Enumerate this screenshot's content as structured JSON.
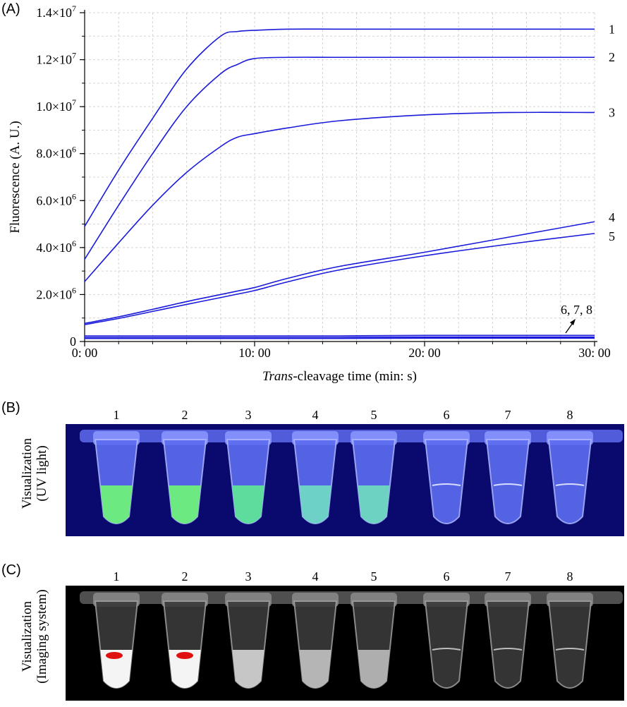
{
  "panels": {
    "a": "(A)",
    "b": "(B)",
    "c": "(C)"
  },
  "chart_data": {
    "type": "line",
    "ylabel": "Fluorescence (A. U.)",
    "xlabel_italic": "Trans",
    "xlabel_rest": "-cleavage time (min: s)",
    "xlim": [
      0,
      30
    ],
    "ylim": [
      0,
      14000000
    ],
    "x_ticks": [
      {
        "value": 0,
        "label": "0: 00"
      },
      {
        "value": 10,
        "label": "10: 00"
      },
      {
        "value": 20,
        "label": "20: 00"
      },
      {
        "value": 30,
        "label": "30: 00"
      }
    ],
    "y_ticks": [
      {
        "value": 0,
        "mant": "0",
        "exp": ""
      },
      {
        "value": 2000000,
        "mant": "2.0×10",
        "exp": "6"
      },
      {
        "value": 4000000,
        "mant": "4.0×10",
        "exp": "6"
      },
      {
        "value": 6000000,
        "mant": "6.0×10",
        "exp": "6"
      },
      {
        "value": 8000000,
        "mant": "8.0×10",
        "exp": "6"
      },
      {
        "value": 10000000,
        "mant": "1.0×10",
        "exp": "7"
      },
      {
        "value": 12000000,
        "mant": "1.2×10",
        "exp": "7"
      },
      {
        "value": 14000000,
        "mant": "1.4×10",
        "exp": "7"
      }
    ],
    "grid": true,
    "line_color": "#1a1adb",
    "x": [
      0,
      2,
      4,
      6,
      8,
      9,
      10,
      12,
      15,
      20,
      25,
      30
    ],
    "series": [
      {
        "name": "1",
        "values": [
          4900000,
          7300000,
          9500000,
          11600000,
          13000000,
          13200000,
          13250000,
          13300000,
          13300000,
          13300000,
          13300000,
          13300000
        ]
      },
      {
        "name": "2",
        "values": [
          3500000,
          5800000,
          8000000,
          10000000,
          11400000,
          11800000,
          12050000,
          12100000,
          12100000,
          12100000,
          12100000,
          12100000
        ]
      },
      {
        "name": "3",
        "values": [
          2550000,
          4200000,
          5800000,
          7200000,
          8300000,
          8700000,
          8850000,
          9100000,
          9400000,
          9650000,
          9750000,
          9750000
        ]
      },
      {
        "name": "4",
        "values": [
          770000,
          1050000,
          1370000,
          1700000,
          2000000,
          2150000,
          2300000,
          2700000,
          3200000,
          3800000,
          4450000,
          5100000
        ]
      },
      {
        "name": "5",
        "values": [
          720000,
          980000,
          1280000,
          1580000,
          1870000,
          2020000,
          2170000,
          2550000,
          3050000,
          3650000,
          4150000,
          4600000
        ]
      },
      {
        "name": "6",
        "values": [
          240000,
          240000,
          240000,
          240000,
          240000,
          240000,
          240000,
          240000,
          240000,
          260000,
          260000,
          260000
        ]
      },
      {
        "name": "7",
        "values": [
          180000,
          180000,
          180000,
          180000,
          180000,
          180000,
          180000,
          180000,
          180000,
          190000,
          190000,
          190000
        ]
      },
      {
        "name": "8",
        "values": [
          130000,
          130000,
          130000,
          130000,
          130000,
          130000,
          130000,
          130000,
          130000,
          140000,
          140000,
          140000
        ]
      }
    ],
    "end_labels": [
      "1",
      "2",
      "3",
      "4",
      "5"
    ],
    "annotation": "6, 7, 8"
  },
  "uv_panel": {
    "side_label_line1": "Visualization",
    "side_label_line2": "(UV light)",
    "tube_numbers": [
      "1",
      "2",
      "3",
      "4",
      "5",
      "6",
      "7",
      "8"
    ],
    "background": "#0a0a6e",
    "liquid_colors": [
      "#6ef07a",
      "#6ef07a",
      "#5ee39a",
      "#6fd7c6",
      "#70d8c0",
      "",
      "",
      ""
    ]
  },
  "imaging_panel": {
    "side_label_line1": "Visualization",
    "side_label_line2": "(Imaging system)",
    "tube_numbers": [
      "1",
      "2",
      "3",
      "4",
      "5",
      "6",
      "7",
      "8"
    ],
    "background": "#000000",
    "hotspot_color": "#e01010",
    "liquid_levels": [
      "#ffffff",
      "#ffffff",
      "#cfcfcf",
      "#bdbdbd",
      "#b5b5b5",
      "",
      "",
      ""
    ]
  }
}
